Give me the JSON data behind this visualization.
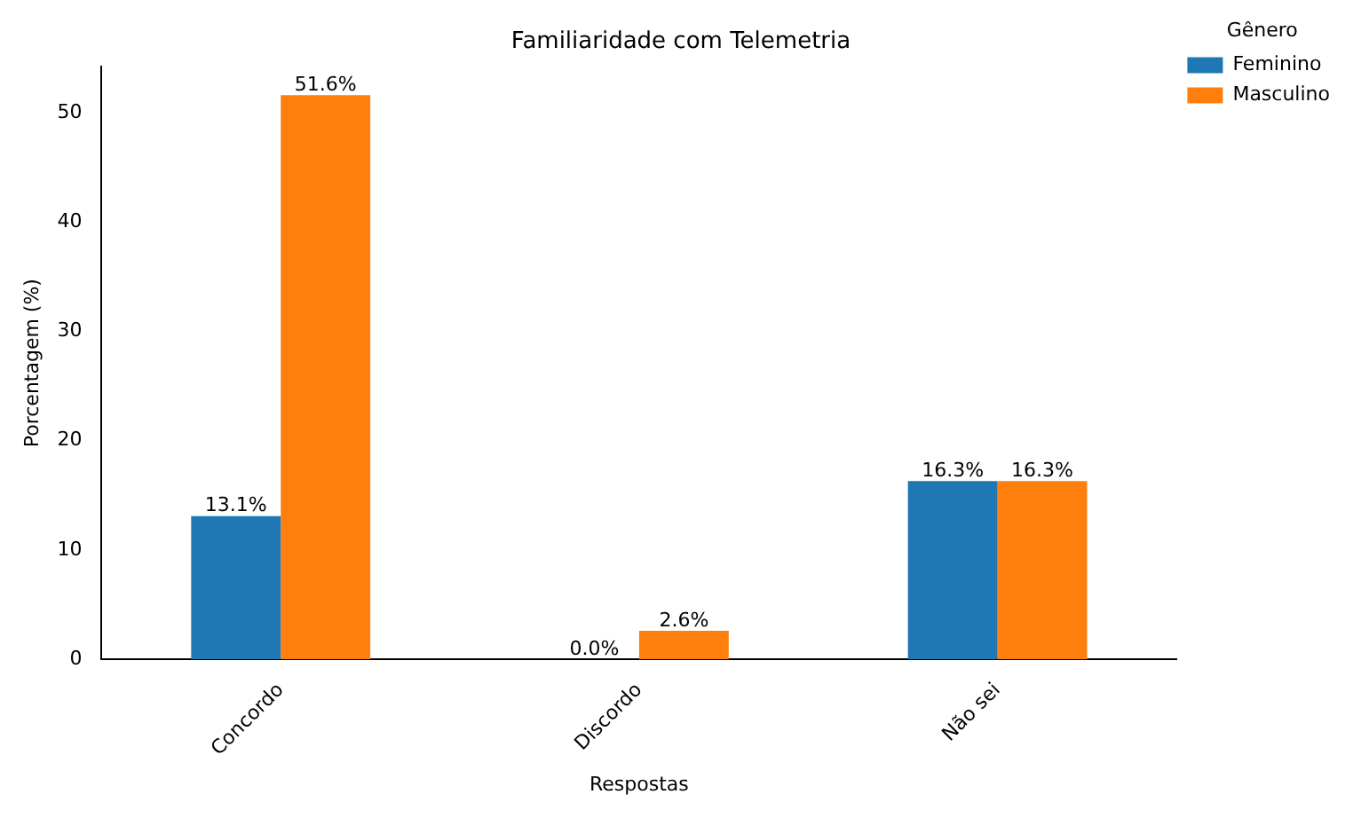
{
  "chart_data": {
    "type": "bar",
    "title": "Familiaridade com Telemetria",
    "xlabel": "Respostas",
    "ylabel": "Porcentagem (%)",
    "legend_title": "Gênero",
    "categories": [
      "Concordo",
      "Discordo",
      "Não sei"
    ],
    "series": [
      {
        "name": "Feminino",
        "color": "#1f77b4",
        "values": [
          13.1,
          0.0,
          16.3
        ],
        "value_labels": [
          "13.1%",
          "0.0%",
          "16.3%"
        ]
      },
      {
        "name": "Masculino",
        "color": "#ff7f0e",
        "values": [
          51.6,
          2.6,
          16.3
        ],
        "value_labels": [
          "51.6%",
          "2.6%",
          "16.3%"
        ]
      }
    ],
    "ylim": [
      0,
      54.2
    ],
    "yticks": [
      0,
      10,
      20,
      30,
      40,
      50
    ],
    "grid": false,
    "legend": "top right"
  }
}
